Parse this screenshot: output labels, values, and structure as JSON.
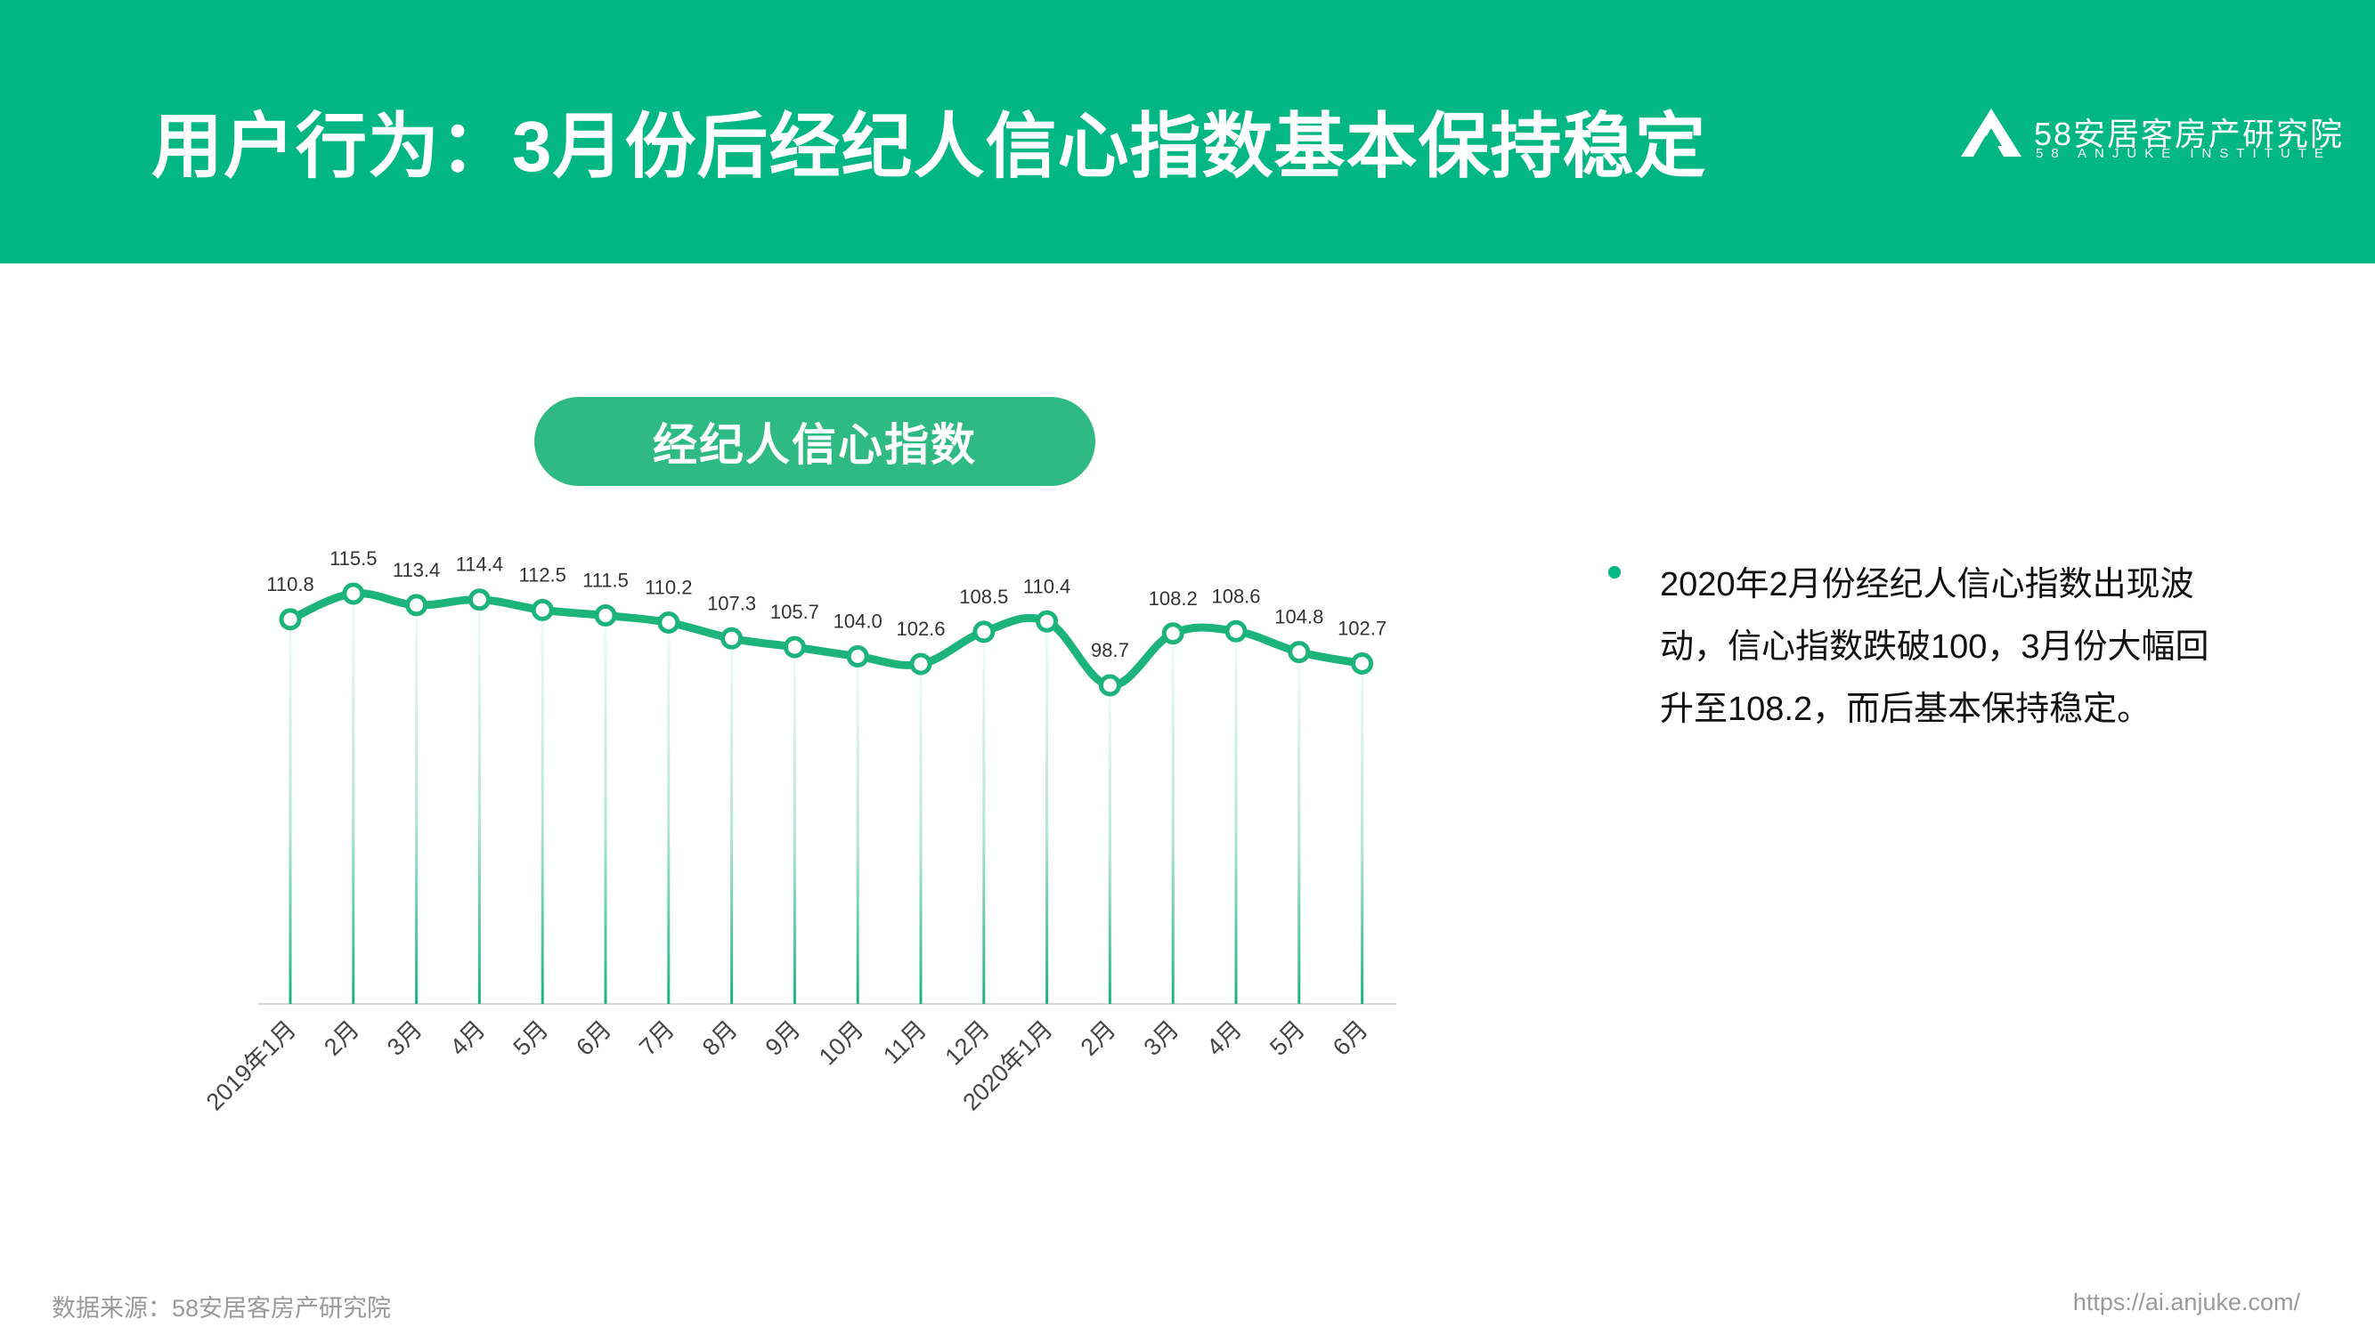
{
  "header": {
    "title": "用户行为：3月份后经纪人信心指数基本保持稳定",
    "logo_name": "58安居客房产研究院",
    "logo_sub": "58 ANJUKE INSTITUTE"
  },
  "colors": {
    "brand": "#02B783",
    "pill": "#2FBA83",
    "line": "#1DB47C"
  },
  "chart_data": {
    "type": "line",
    "title": "经纪人信心指数",
    "categories": [
      "2019年1月",
      "2月",
      "3月",
      "4月",
      "5月",
      "6月",
      "7月",
      "8月",
      "9月",
      "10月",
      "11月",
      "12月",
      "2020年1月",
      "2月",
      "3月",
      "4月",
      "5月",
      "6月"
    ],
    "value_labels": [
      "110.8",
      "115.5",
      "113.4",
      "114.4",
      "112.5",
      "111.5",
      "110.2",
      "107.3",
      "105.7",
      "104.0",
      "102.6",
      "108.5",
      "110.4",
      "98.7",
      "108.2",
      "108.6",
      "104.8",
      "102.7"
    ],
    "values": [
      110.8,
      115.5,
      113.4,
      114.4,
      112.5,
      111.5,
      110.2,
      107.3,
      105.7,
      104.0,
      102.6,
      108.5,
      110.4,
      98.7,
      108.2,
      108.6,
      104.8,
      102.7
    ],
    "xlabel": "",
    "ylabel": "",
    "grid": false,
    "legend": "none"
  },
  "note": {
    "text": "2020年2月份经纪人信心指数出现波动，信心指数跌破100，3月份大幅回升至108.2，而后基本保持稳定。"
  },
  "footer": {
    "source": "数据来源：58安居客房产研究院",
    "url": "https://ai.anjuke.com/"
  }
}
